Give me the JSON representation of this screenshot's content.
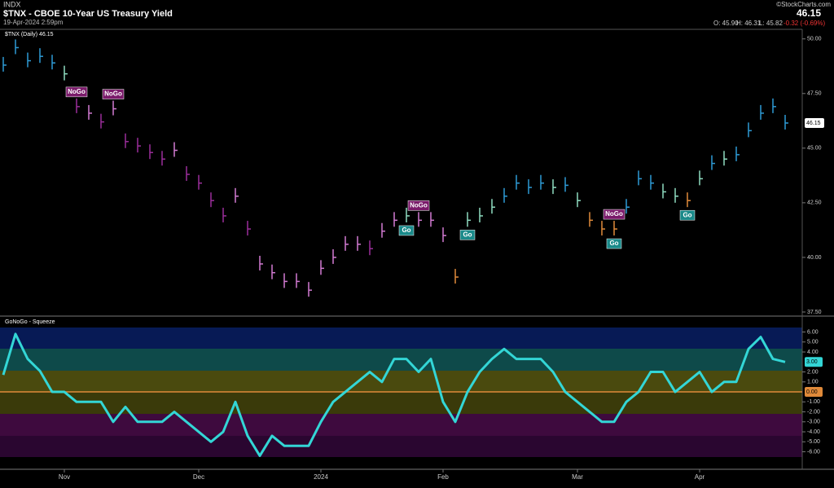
{
  "header": {
    "exchange": "INDX",
    "title": "$TNX - CBOE 10-Year US Treasury Yield",
    "timestamp": "19-Apr-2024 2:59pm",
    "source": "©StockCharts.com",
    "last": "46.15",
    "open": "O: 45.90",
    "high": "H: 46.31",
    "low": "L: 45.82",
    "change": "-0.32 (-0.69%)"
  },
  "chart_data": [
    {
      "type": "price-bars",
      "title": "$TNX (Daily) 46.15",
      "categories": [
        null,
        null,
        null,
        null,
        null,
        "Nov",
        null,
        null,
        null,
        null,
        null,
        null,
        null,
        null,
        null,
        null,
        "Dec",
        null,
        null,
        null,
        null,
        null,
        null,
        null,
        null,
        null,
        "2024",
        null,
        null,
        null,
        null,
        null,
        null,
        null,
        null,
        null,
        "Feb",
        null,
        null,
        null,
        null,
        null,
        null,
        null,
        null,
        null,
        null,
        "Mar",
        null,
        null,
        null,
        null,
        null,
        null,
        null,
        null,
        null,
        "Apr",
        null,
        null,
        null,
        null,
        null,
        null,
        null
      ],
      "values": [
        48.8,
        49.6,
        49.0,
        49.2,
        48.9,
        48.4,
        46.9,
        46.6,
        46.2,
        46.8,
        45.3,
        45.1,
        44.8,
        44.5,
        44.9,
        43.8,
        43.4,
        42.6,
        41.9,
        42.8,
        41.3,
        39.7,
        39.3,
        38.9,
        38.9,
        38.5,
        39.5,
        40.0,
        40.6,
        40.6,
        40.4,
        41.2,
        41.7,
        41.9,
        41.7,
        41.7,
        41.0,
        39.1,
        41.7,
        41.9,
        42.3,
        42.8,
        43.4,
        43.2,
        43.4,
        43.2,
        43.3,
        42.6,
        41.7,
        41.3,
        41.3,
        42.3,
        43.6,
        43.4,
        43.0,
        42.8,
        42.6,
        43.6,
        44.3,
        44.5,
        44.7,
        45.8,
        46.6,
        46.9,
        46.15
      ],
      "colors": [
        "#2e9bd6",
        "#2e9bd6",
        "#2e9bd6",
        "#2e9bd6",
        "#2e9bd6",
        "#8fdcc0",
        "#9b2e9b",
        "#d27ad2",
        "#9b2e9b",
        "#d27ad2",
        "#9b2e9b",
        "#9b2e9b",
        "#9b2e9b",
        "#9b2e9b",
        "#d27ad2",
        "#9b2e9b",
        "#9b2e9b",
        "#9b2e9b",
        "#9b2e9b",
        "#d27ad2",
        "#9b2e9b",
        "#d27ad2",
        "#d27ad2",
        "#d27ad2",
        "#d27ad2",
        "#d27ad2",
        "#d27ad2",
        "#d27ad2",
        "#d27ad2",
        "#d27ad2",
        "#9b2e9b",
        "#d27ad2",
        "#d27ad2",
        "#8fdcc0",
        "#d27ad2",
        "#d27ad2",
        "#d27ad2",
        "#e08a3a",
        "#8fdcc0",
        "#8fdcc0",
        "#8fdcc0",
        "#2e9bd6",
        "#2e9bd6",
        "#2e9bd6",
        "#2e9bd6",
        "#8fdcc0",
        "#2e9bd6",
        "#8fdcc0",
        "#e08a3a",
        "#e08a3a",
        "#e08a3a",
        "#2e9bd6",
        "#2e9bd6",
        "#2e9bd6",
        "#8fdcc0",
        "#8fdcc0",
        "#e08a3a",
        "#8fdcc0",
        "#2e9bd6",
        "#8fdcc0",
        "#2e9bd6",
        "#2e9bd6",
        "#2e9bd6",
        "#2e9bd6",
        "#2e9bd6"
      ],
      "ylim": [
        37.35,
        50.4
      ],
      "yticks": [
        {
          "value": 37.5,
          "label": "37.50"
        },
        {
          "value": 40,
          "label": "40.00"
        },
        {
          "value": 42.5,
          "label": "42.50"
        },
        {
          "value": 45,
          "label": "45.00"
        },
        {
          "value": 47.5,
          "label": "47.50"
        },
        {
          "value": 50,
          "label": "50.00"
        }
      ],
      "last_label": {
        "value": 46.15,
        "label": "46.15"
      },
      "annotations": [
        {
          "text": "NoGo",
          "index": 6
        },
        {
          "text": "NoGo",
          "index": 9
        },
        {
          "text": "NoGo",
          "index": 34
        },
        {
          "text": "Go",
          "index": 33
        },
        {
          "text": "Go",
          "index": 38
        },
        {
          "text": "NoGo",
          "index": 50
        },
        {
          "text": "Go",
          "index": 50
        },
        {
          "text": "Go",
          "index": 56
        }
      ]
    },
    {
      "type": "line",
      "title": "GoNoGo - Squeeze",
      "color": "#33d6d6",
      "values": [
        1.7,
        5.8,
        3.3,
        2.1,
        0,
        0,
        -1,
        -1,
        -1,
        -3,
        -1.5,
        -3,
        -3,
        -3,
        -2,
        -3,
        -4,
        -5,
        -4,
        -1,
        -4.4,
        -6.4,
        -4.4,
        -5.4,
        -5.4,
        -5.4,
        -3,
        -1,
        0,
        1,
        2,
        1,
        3.3,
        3.3,
        2,
        3.3,
        -1,
        -3,
        0,
        2,
        3.3,
        4.3,
        3.3,
        3.3,
        3.3,
        2,
        0,
        -1,
        -2,
        -3,
        -3,
        -1,
        0,
        2,
        2,
        0,
        1,
        2,
        0,
        1,
        1,
        4.3,
        5.5,
        3.3,
        3.0
      ],
      "ylim": [
        -7.67,
        7.43
      ],
      "yticks": [
        {
          "value": -6,
          "label": "-6.00"
        },
        {
          "value": -5,
          "label": "-5.00"
        },
        {
          "value": -4,
          "label": "-4.00"
        },
        {
          "value": -3,
          "label": "-3.00"
        },
        {
          "value": -2,
          "label": "-2.00"
        },
        {
          "value": -1,
          "label": "-1.00"
        },
        {
          "value": 1,
          "label": "1.00"
        },
        {
          "value": 2,
          "label": "2.00"
        },
        {
          "value": 4,
          "label": "4.00"
        },
        {
          "value": 5,
          "label": "5.00"
        },
        {
          "value": 6,
          "label": "6.00"
        }
      ],
      "last_label": {
        "value": 3,
        "label": "3.00"
      },
      "zero_line": {
        "value": 0,
        "label": "0.00"
      }
    }
  ]
}
